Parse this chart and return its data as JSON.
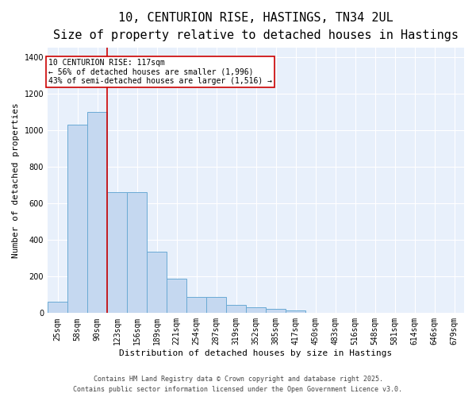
{
  "title_line1": "10, CENTURION RISE, HASTINGS, TN34 2UL",
  "title_line2": "Size of property relative to detached houses in Hastings",
  "xlabel": "Distribution of detached houses by size in Hastings",
  "ylabel": "Number of detached properties",
  "categories": [
    "25sqm",
    "58sqm",
    "90sqm",
    "123sqm",
    "156sqm",
    "189sqm",
    "221sqm",
    "254sqm",
    "287sqm",
    "319sqm",
    "352sqm",
    "385sqm",
    "417sqm",
    "450sqm",
    "483sqm",
    "516sqm",
    "548sqm",
    "581sqm",
    "614sqm",
    "646sqm",
    "679sqm"
  ],
  "values": [
    62,
    1030,
    1100,
    660,
    660,
    335,
    190,
    90,
    90,
    45,
    30,
    25,
    15,
    0,
    0,
    0,
    0,
    0,
    0,
    0,
    0
  ],
  "bar_color": "#c5d8f0",
  "bar_edge_color": "#6aaad4",
  "bg_color": "#e8f0fb",
  "grid_color": "#ffffff",
  "vline_x": 2.5,
  "vline_color": "#cc0000",
  "annotation_text": "10 CENTURION RISE: 117sqm\n← 56% of detached houses are smaller (1,996)\n43% of semi-detached houses are larger (1,516) →",
  "annotation_box_color": "#cc0000",
  "ylim": [
    0,
    1450
  ],
  "yticks": [
    0,
    200,
    400,
    600,
    800,
    1000,
    1200,
    1400
  ],
  "footer_line1": "Contains HM Land Registry data © Crown copyright and database right 2025.",
  "footer_line2": "Contains public sector information licensed under the Open Government Licence v3.0.",
  "title_fontsize": 11,
  "subtitle_fontsize": 9,
  "axis_label_fontsize": 8,
  "tick_fontsize": 7,
  "annotation_fontsize": 7,
  "footer_fontsize": 6
}
